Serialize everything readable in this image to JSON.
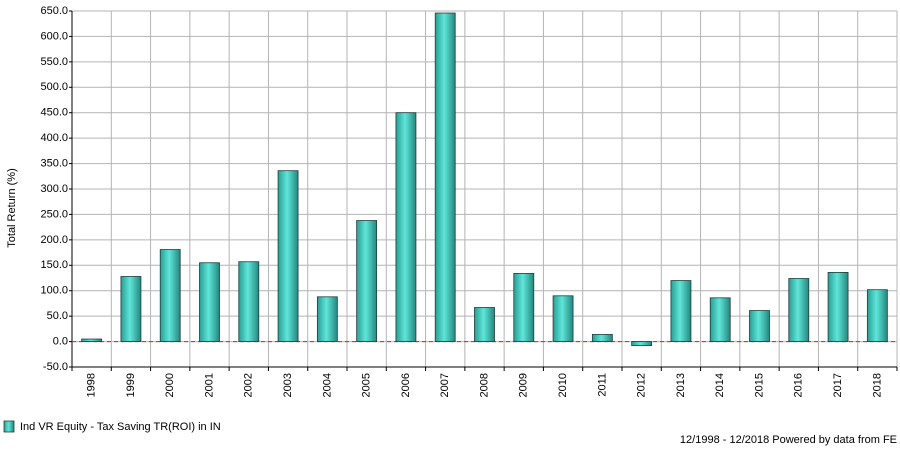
{
  "chart_data": {
    "type": "bar",
    "y_label": "Total Return (%)",
    "categories": [
      "1998",
      "1999",
      "2000",
      "2001",
      "2002",
      "2003",
      "2004",
      "2005",
      "2006",
      "2007",
      "2008",
      "2009",
      "2010",
      "2011",
      "2012",
      "2013",
      "2014",
      "2015",
      "2016",
      "2017",
      "2018"
    ],
    "series": [
      {
        "name": "Ind VR Equity - Tax Saving TR(ROI) in IN",
        "color": "#5fe6d9",
        "values": [
          5,
          128,
          181,
          155,
          157,
          336,
          88,
          238,
          450,
          646,
          67,
          134,
          90,
          14,
          -8,
          120,
          86,
          61,
          124,
          136,
          102
        ]
      }
    ],
    "ylim": [
      -50,
      650
    ],
    "yticks": [
      {
        "value": -50,
        "label": "-50.0"
      },
      {
        "value": 0,
        "label": "0.0"
      },
      {
        "value": 50,
        "label": "50.0"
      },
      {
        "value": 100,
        "label": "100.0"
      },
      {
        "value": 150,
        "label": "150.0"
      },
      {
        "value": 200,
        "label": "200.0"
      },
      {
        "value": 250,
        "label": "250.0"
      },
      {
        "value": 300,
        "label": "300.0"
      },
      {
        "value": 350,
        "label": "350.0"
      },
      {
        "value": 400,
        "label": "400.0"
      },
      {
        "value": 450,
        "label": "450.0"
      },
      {
        "value": 500,
        "label": "500.0"
      },
      {
        "value": 550,
        "label": "550.0"
      },
      {
        "value": 600,
        "label": "600.0"
      },
      {
        "value": 650,
        "label": "650.0"
      }
    ],
    "grid": true,
    "footer": "12/1998 - 12/2018 Powered by data from FE"
  }
}
